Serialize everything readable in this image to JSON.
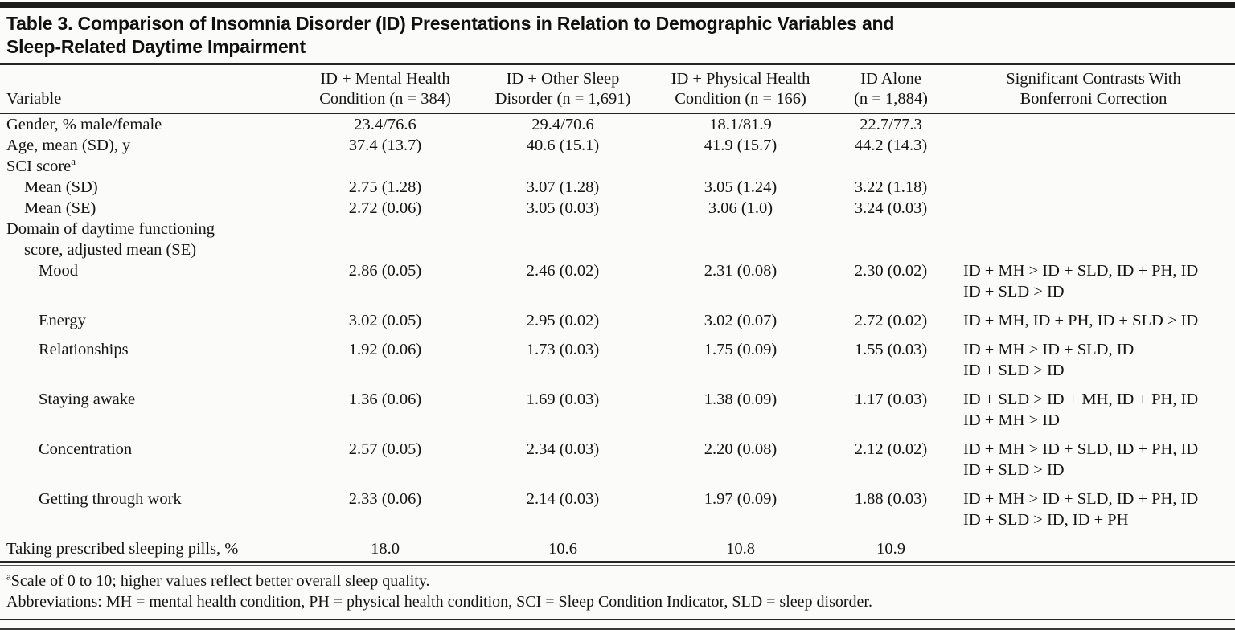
{
  "header": {
    "title_line1": "Table 3. Comparison of Insomnia Disorder (ID) Presentations in Relation to Demographic Variables and",
    "title_line2": "Sleep-Related Daytime Impairment"
  },
  "table": {
    "columns": [
      {
        "id": "variable",
        "lines": [
          "Variable"
        ]
      },
      {
        "id": "id-mental-health",
        "lines": [
          "ID + Mental Health",
          "Condition (n = 384)"
        ]
      },
      {
        "id": "id-other-sleep",
        "lines": [
          "ID + Other Sleep",
          "Disorder (n = 1,691)"
        ]
      },
      {
        "id": "id-physical-health",
        "lines": [
          "ID + Physical Health",
          "Condition (n = 166)"
        ]
      },
      {
        "id": "id-alone",
        "lines": [
          "ID Alone",
          "(n = 1,884)"
        ]
      },
      {
        "id": "contrasts",
        "lines": [
          "Significant Contrasts With",
          "Bonferroni Correction"
        ]
      }
    ],
    "rows": [
      {
        "label_lines": [
          "Gender, % male/female"
        ],
        "sup": "",
        "indent": 0,
        "gap": false,
        "values": [
          "23.4/76.6",
          "29.4/70.6",
          "18.1/81.9",
          "22.7/77.3"
        ],
        "contrast": []
      },
      {
        "label_lines": [
          "Age, mean (SD), y"
        ],
        "sup": "",
        "indent": 0,
        "gap": false,
        "values": [
          "37.4 (13.7)",
          "40.6 (15.1)",
          "41.9 (15.7)",
          "44.2 (14.3)"
        ],
        "contrast": []
      },
      {
        "label_lines": [
          "SCI score"
        ],
        "sup": "a",
        "indent": 0,
        "gap": false,
        "values": [
          "",
          "",
          "",
          ""
        ],
        "contrast": []
      },
      {
        "label_lines": [
          "Mean (SD)"
        ],
        "sup": "",
        "indent": 1,
        "gap": false,
        "values": [
          "2.75 (1.28)",
          "3.07 (1.28)",
          "3.05 (1.24)",
          "3.22 (1.18)"
        ],
        "contrast": []
      },
      {
        "label_lines": [
          "Mean (SE)"
        ],
        "sup": "",
        "indent": 1,
        "gap": false,
        "values": [
          "2.72 (0.06)",
          "3.05 (0.03)",
          "3.06 (1.0)",
          "3.24 (0.03)"
        ],
        "contrast": []
      },
      {
        "label_lines": [
          "Domain of daytime functioning",
          "score, adjusted mean (SE)"
        ],
        "sup": "",
        "indent": 0,
        "gap": false,
        "values": [
          "",
          "",
          "",
          ""
        ],
        "contrast": []
      },
      {
        "label_lines": [
          "Mood"
        ],
        "sup": "",
        "indent": 2,
        "gap": true,
        "values": [
          "2.86 (0.05)",
          "2.46 (0.02)",
          "2.31 (0.08)",
          "2.30 (0.02)"
        ],
        "contrast": [
          "ID + MH > ID + SLD, ID + PH, ID",
          "ID + SLD > ID"
        ]
      },
      {
        "label_lines": [
          "Energy"
        ],
        "sup": "",
        "indent": 2,
        "gap": true,
        "values": [
          "3.02 (0.05)",
          "2.95 (0.02)",
          "3.02 (0.07)",
          "2.72 (0.02)"
        ],
        "contrast": [
          "ID + MH, ID + PH, ID + SLD > ID"
        ]
      },
      {
        "label_lines": [
          "Relationships"
        ],
        "sup": "",
        "indent": 2,
        "gap": true,
        "values": [
          "1.92 (0.06)",
          "1.73 (0.03)",
          "1.75 (0.09)",
          "1.55 (0.03)"
        ],
        "contrast": [
          "ID + MH > ID + SLD, ID",
          "ID + SLD > ID"
        ]
      },
      {
        "label_lines": [
          "Staying awake"
        ],
        "sup": "",
        "indent": 2,
        "gap": true,
        "values": [
          "1.36 (0.06)",
          "1.69 (0.03)",
          "1.38 (0.09)",
          "1.17 (0.03)"
        ],
        "contrast": [
          "ID + SLD > ID + MH, ID + PH, ID",
          "ID + MH > ID"
        ]
      },
      {
        "label_lines": [
          "Concentration"
        ],
        "sup": "",
        "indent": 2,
        "gap": true,
        "values": [
          "2.57 (0.05)",
          "2.34 (0.03)",
          "2.20 (0.08)",
          "2.12 (0.02)"
        ],
        "contrast": [
          "ID + MH > ID + SLD, ID + PH, ID",
          "ID + SLD > ID"
        ]
      },
      {
        "label_lines": [
          "Getting through work"
        ],
        "sup": "",
        "indent": 2,
        "gap": true,
        "values": [
          "2.33 (0.06)",
          "2.14 (0.03)",
          "1.97 (0.09)",
          "1.88 (0.03)"
        ],
        "contrast": [
          "ID + MH > ID + SLD, ID + PH, ID",
          "ID + SLD > ID, ID + PH"
        ]
      },
      {
        "label_lines": [
          "Taking prescribed sleeping pills, %"
        ],
        "sup": "",
        "indent": 0,
        "gap": false,
        "values": [
          "18.0",
          "10.6",
          "10.8",
          "10.9"
        ],
        "contrast": []
      }
    ]
  },
  "footnotes": {
    "a_sup": "a",
    "a_text": "Scale of 0 to 10; higher values reflect better overall sleep quality.",
    "abbreviations": "Abbreviations: MH = mental health condition, PH = physical health condition, SCI = Sleep Condition Indicator, SLD = sleep disorder."
  },
  "colors": {
    "rule": "#262626",
    "text": "#141414",
    "background": "#fbfbf9"
  }
}
